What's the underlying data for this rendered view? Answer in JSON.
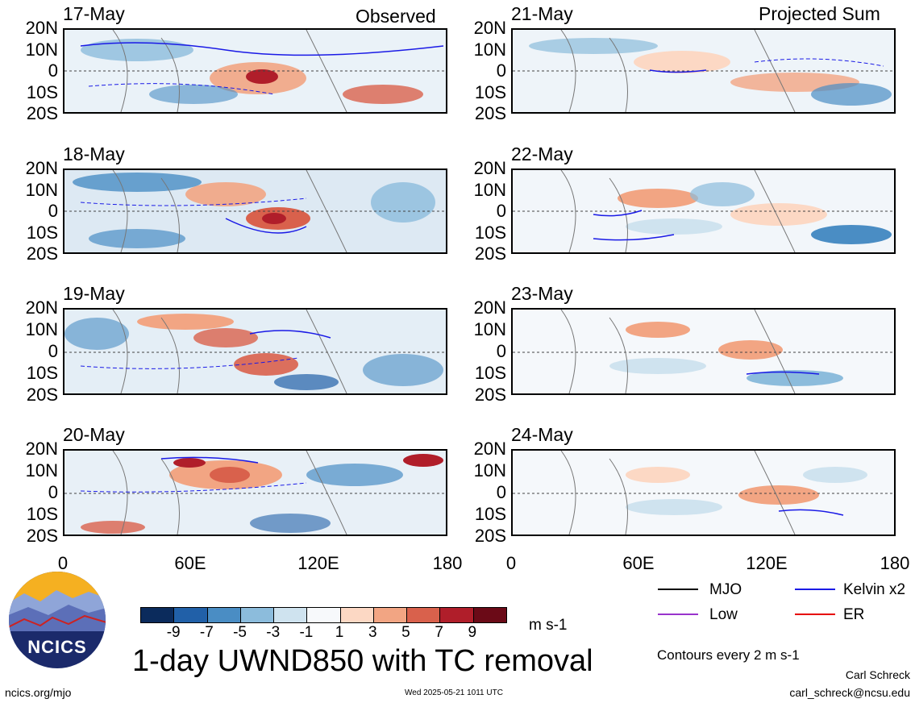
{
  "header": {
    "observed_label": "Observed",
    "projected_label": "Projected Sum"
  },
  "panels": {
    "observed": [
      {
        "date": "17-May"
      },
      {
        "date": "18-May"
      },
      {
        "date": "19-May"
      },
      {
        "date": "20-May"
      }
    ],
    "projected": [
      {
        "date": "21-May"
      },
      {
        "date": "22-May"
      },
      {
        "date": "23-May"
      },
      {
        "date": "24-May"
      }
    ]
  },
  "lat_labels": [
    "20N",
    "10N",
    "0",
    "10S",
    "20S"
  ],
  "lon_labels": [
    "0",
    "60E",
    "120E",
    "180"
  ],
  "colorbar": {
    "labels": [
      "-9",
      "-7",
      "-5",
      "-3",
      "-1",
      "1",
      "3",
      "5",
      "7",
      "9"
    ],
    "colors": [
      "#0b2b5c",
      "#2160a8",
      "#4a8dc4",
      "#8cbcdc",
      "#cfe3ef",
      "#f7f9fb",
      "#fcd8c4",
      "#f2a583",
      "#d9614c",
      "#b01e2a",
      "#6b0a17"
    ],
    "units": "m s-1"
  },
  "legend": {
    "mjo": "MJO",
    "kelvin": "Kelvin x2",
    "low": "Low",
    "er": "ER",
    "contours": "Contours every 2 m s-1",
    "colors": {
      "mjo": "#000000",
      "kelvin": "#1a1ae6",
      "low": "#9933cc",
      "er": "#e60000"
    }
  },
  "title": "1-day UWND850 with TC removal",
  "logo_text": "NCICS",
  "footer": {
    "url": "ncics.org/mjo",
    "timestamp": "Wed 2025-05-21 1011 UTC",
    "author": "Carl Schreck",
    "email": "carl_schreck@ncsu.edu"
  }
}
